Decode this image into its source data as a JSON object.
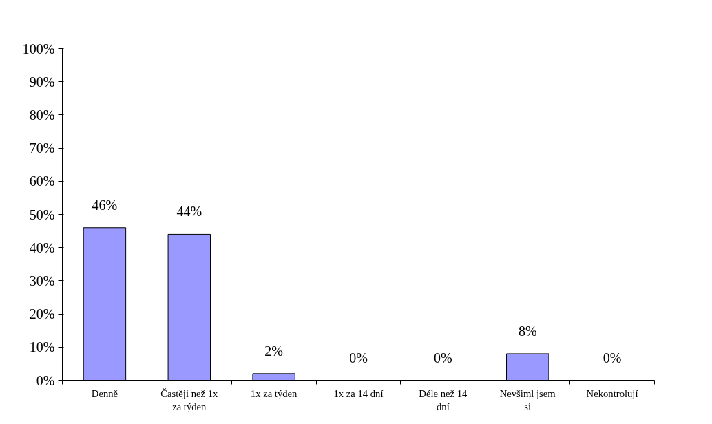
{
  "chart_data": {
    "type": "bar",
    "categories": [
      "Denně",
      "Častěji než 1x za týden",
      "1x za týden",
      "1x za 14 dní",
      "Déle než 14 dní",
      "Nevšiml jsem si",
      "Nekontrolují"
    ],
    "values": [
      46,
      44,
      2,
      0,
      0,
      8,
      0
    ],
    "color": "#9999ff",
    "value_labels": [
      "46%",
      "44%",
      "2%",
      "0%",
      "0%",
      "8%",
      "0%"
    ],
    "ylim": [
      0,
      100
    ],
    "yticks": [
      {
        "value": 0,
        "label": "0%"
      },
      {
        "value": 10,
        "label": "10%"
      },
      {
        "value": 20,
        "label": "20%"
      },
      {
        "value": 30,
        "label": "30%"
      },
      {
        "value": 40,
        "label": "40%"
      },
      {
        "value": 50,
        "label": "50%"
      },
      {
        "value": 60,
        "label": "60%"
      },
      {
        "value": 70,
        "label": "70%"
      },
      {
        "value": 80,
        "label": "80%"
      },
      {
        "value": 90,
        "label": "90%"
      },
      {
        "value": 100,
        "label": "100%"
      }
    ],
    "grid": false
  }
}
